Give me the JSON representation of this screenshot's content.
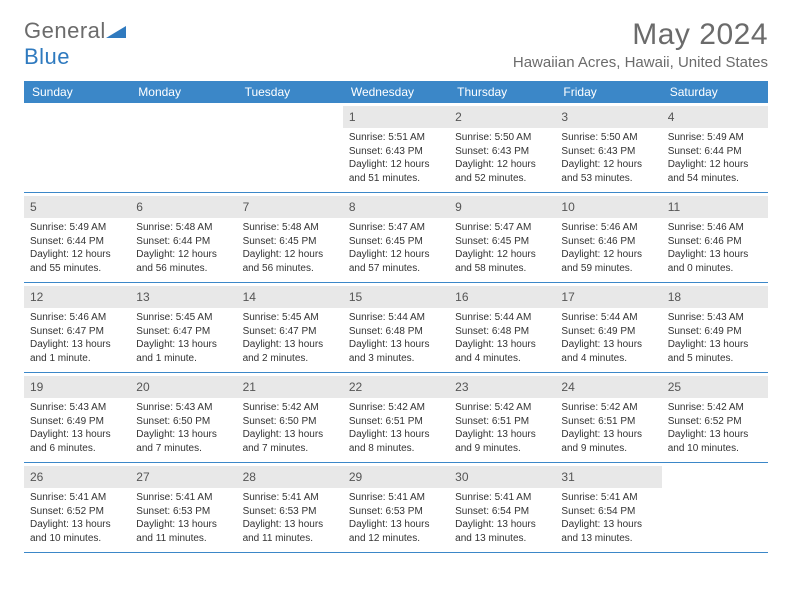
{
  "brand": {
    "part1": "General",
    "part2": "Blue"
  },
  "title": "May 2024",
  "location": "Hawaiian Acres, Hawaii, United States",
  "colors": {
    "header_bg": "#3b87c8",
    "row_divider": "#3b87c8",
    "daynum_bg": "#e8e8e8",
    "text_muted": "#6b6b6b",
    "brand_blue": "#2f7abf"
  },
  "weekdays": [
    "Sunday",
    "Monday",
    "Tuesday",
    "Wednesday",
    "Thursday",
    "Friday",
    "Saturday"
  ],
  "weeks": [
    [
      {
        "num": "",
        "lines": []
      },
      {
        "num": "",
        "lines": []
      },
      {
        "num": "",
        "lines": []
      },
      {
        "num": "1",
        "lines": [
          "Sunrise: 5:51 AM",
          "Sunset: 6:43 PM",
          "Daylight: 12 hours",
          "and 51 minutes."
        ]
      },
      {
        "num": "2",
        "lines": [
          "Sunrise: 5:50 AM",
          "Sunset: 6:43 PM",
          "Daylight: 12 hours",
          "and 52 minutes."
        ]
      },
      {
        "num": "3",
        "lines": [
          "Sunrise: 5:50 AM",
          "Sunset: 6:43 PM",
          "Daylight: 12 hours",
          "and 53 minutes."
        ]
      },
      {
        "num": "4",
        "lines": [
          "Sunrise: 5:49 AM",
          "Sunset: 6:44 PM",
          "Daylight: 12 hours",
          "and 54 minutes."
        ]
      }
    ],
    [
      {
        "num": "5",
        "lines": [
          "Sunrise: 5:49 AM",
          "Sunset: 6:44 PM",
          "Daylight: 12 hours",
          "and 55 minutes."
        ]
      },
      {
        "num": "6",
        "lines": [
          "Sunrise: 5:48 AM",
          "Sunset: 6:44 PM",
          "Daylight: 12 hours",
          "and 56 minutes."
        ]
      },
      {
        "num": "7",
        "lines": [
          "Sunrise: 5:48 AM",
          "Sunset: 6:45 PM",
          "Daylight: 12 hours",
          "and 56 minutes."
        ]
      },
      {
        "num": "8",
        "lines": [
          "Sunrise: 5:47 AM",
          "Sunset: 6:45 PM",
          "Daylight: 12 hours",
          "and 57 minutes."
        ]
      },
      {
        "num": "9",
        "lines": [
          "Sunrise: 5:47 AM",
          "Sunset: 6:45 PM",
          "Daylight: 12 hours",
          "and 58 minutes."
        ]
      },
      {
        "num": "10",
        "lines": [
          "Sunrise: 5:46 AM",
          "Sunset: 6:46 PM",
          "Daylight: 12 hours",
          "and 59 minutes."
        ]
      },
      {
        "num": "11",
        "lines": [
          "Sunrise: 5:46 AM",
          "Sunset: 6:46 PM",
          "Daylight: 13 hours",
          "and 0 minutes."
        ]
      }
    ],
    [
      {
        "num": "12",
        "lines": [
          "Sunrise: 5:46 AM",
          "Sunset: 6:47 PM",
          "Daylight: 13 hours",
          "and 1 minute."
        ]
      },
      {
        "num": "13",
        "lines": [
          "Sunrise: 5:45 AM",
          "Sunset: 6:47 PM",
          "Daylight: 13 hours",
          "and 1 minute."
        ]
      },
      {
        "num": "14",
        "lines": [
          "Sunrise: 5:45 AM",
          "Sunset: 6:47 PM",
          "Daylight: 13 hours",
          "and 2 minutes."
        ]
      },
      {
        "num": "15",
        "lines": [
          "Sunrise: 5:44 AM",
          "Sunset: 6:48 PM",
          "Daylight: 13 hours",
          "and 3 minutes."
        ]
      },
      {
        "num": "16",
        "lines": [
          "Sunrise: 5:44 AM",
          "Sunset: 6:48 PM",
          "Daylight: 13 hours",
          "and 4 minutes."
        ]
      },
      {
        "num": "17",
        "lines": [
          "Sunrise: 5:44 AM",
          "Sunset: 6:49 PM",
          "Daylight: 13 hours",
          "and 4 minutes."
        ]
      },
      {
        "num": "18",
        "lines": [
          "Sunrise: 5:43 AM",
          "Sunset: 6:49 PM",
          "Daylight: 13 hours",
          "and 5 minutes."
        ]
      }
    ],
    [
      {
        "num": "19",
        "lines": [
          "Sunrise: 5:43 AM",
          "Sunset: 6:49 PM",
          "Daylight: 13 hours",
          "and 6 minutes."
        ]
      },
      {
        "num": "20",
        "lines": [
          "Sunrise: 5:43 AM",
          "Sunset: 6:50 PM",
          "Daylight: 13 hours",
          "and 7 minutes."
        ]
      },
      {
        "num": "21",
        "lines": [
          "Sunrise: 5:42 AM",
          "Sunset: 6:50 PM",
          "Daylight: 13 hours",
          "and 7 minutes."
        ]
      },
      {
        "num": "22",
        "lines": [
          "Sunrise: 5:42 AM",
          "Sunset: 6:51 PM",
          "Daylight: 13 hours",
          "and 8 minutes."
        ]
      },
      {
        "num": "23",
        "lines": [
          "Sunrise: 5:42 AM",
          "Sunset: 6:51 PM",
          "Daylight: 13 hours",
          "and 9 minutes."
        ]
      },
      {
        "num": "24",
        "lines": [
          "Sunrise: 5:42 AM",
          "Sunset: 6:51 PM",
          "Daylight: 13 hours",
          "and 9 minutes."
        ]
      },
      {
        "num": "25",
        "lines": [
          "Sunrise: 5:42 AM",
          "Sunset: 6:52 PM",
          "Daylight: 13 hours",
          "and 10 minutes."
        ]
      }
    ],
    [
      {
        "num": "26",
        "lines": [
          "Sunrise: 5:41 AM",
          "Sunset: 6:52 PM",
          "Daylight: 13 hours",
          "and 10 minutes."
        ]
      },
      {
        "num": "27",
        "lines": [
          "Sunrise: 5:41 AM",
          "Sunset: 6:53 PM",
          "Daylight: 13 hours",
          "and 11 minutes."
        ]
      },
      {
        "num": "28",
        "lines": [
          "Sunrise: 5:41 AM",
          "Sunset: 6:53 PM",
          "Daylight: 13 hours",
          "and 11 minutes."
        ]
      },
      {
        "num": "29",
        "lines": [
          "Sunrise: 5:41 AM",
          "Sunset: 6:53 PM",
          "Daylight: 13 hours",
          "and 12 minutes."
        ]
      },
      {
        "num": "30",
        "lines": [
          "Sunrise: 5:41 AM",
          "Sunset: 6:54 PM",
          "Daylight: 13 hours",
          "and 13 minutes."
        ]
      },
      {
        "num": "31",
        "lines": [
          "Sunrise: 5:41 AM",
          "Sunset: 6:54 PM",
          "Daylight: 13 hours",
          "and 13 minutes."
        ]
      },
      {
        "num": "",
        "lines": []
      }
    ]
  ]
}
